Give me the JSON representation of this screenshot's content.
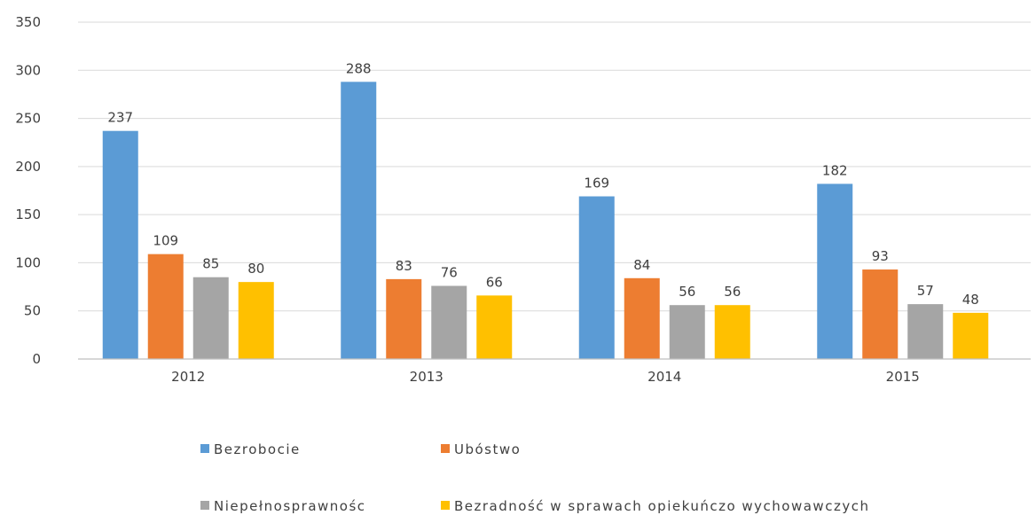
{
  "chart_data": {
    "type": "bar",
    "categories": [
      "2012",
      "2013",
      "2014",
      "2015"
    ],
    "series": [
      {
        "name": "Bezrobocie",
        "color": "#5b9bd5",
        "values": [
          237,
          288,
          169,
          182
        ]
      },
      {
        "name": "Ubóstwo",
        "color": "#ed7d31",
        "values": [
          109,
          83,
          84,
          93
        ]
      },
      {
        "name": "Niepełnosprawnośc",
        "color": "#a5a5a5",
        "values": [
          85,
          76,
          56,
          57
        ]
      },
      {
        "name": "Bezradność w sprawach opiekuńczo wychowawczych",
        "color": "#ffc000",
        "values": [
          80,
          66,
          56,
          48
        ]
      }
    ],
    "title": "",
    "xlabel": "",
    "ylabel": "",
    "ylim": [
      0,
      350
    ],
    "yticks": [
      0,
      50,
      100,
      150,
      200,
      250,
      300,
      350
    ],
    "grid": true,
    "data_labels": true,
    "legend_position": "bottom"
  }
}
